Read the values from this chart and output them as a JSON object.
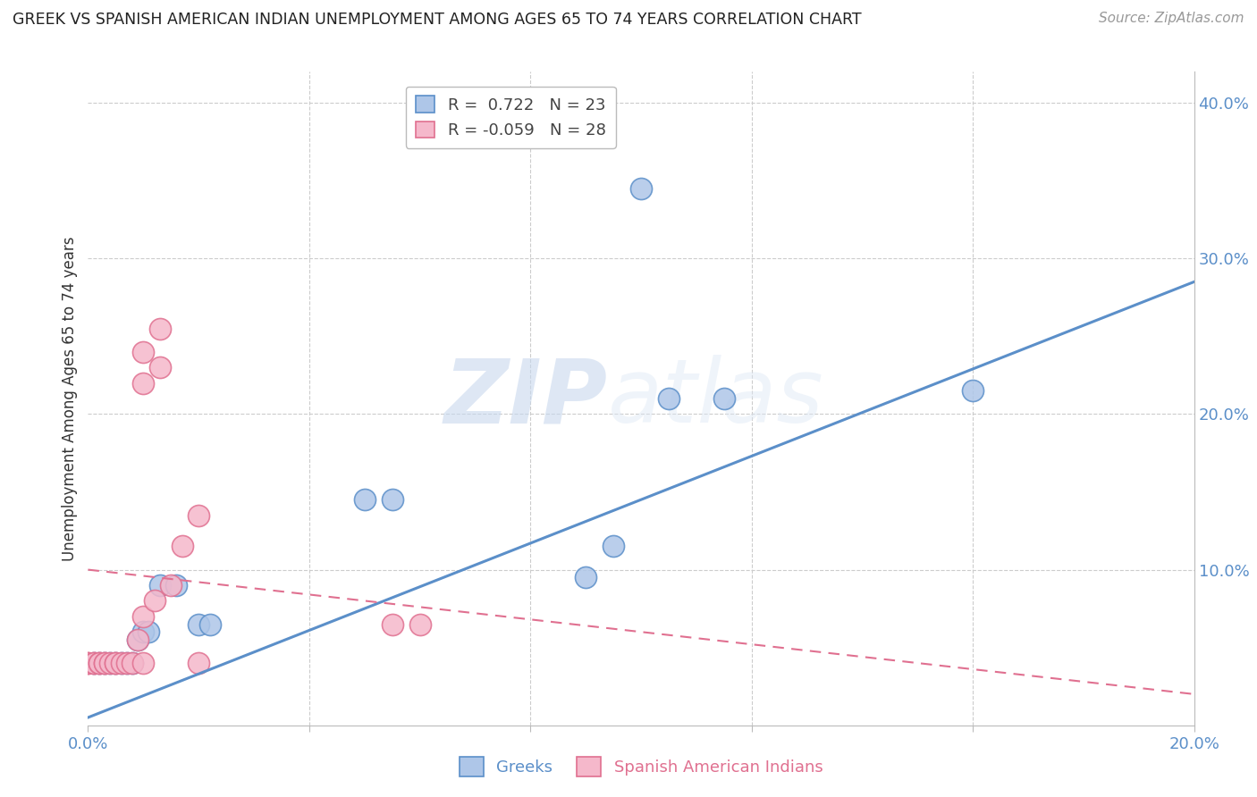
{
  "title": "GREEK VS SPANISH AMERICAN INDIAN UNEMPLOYMENT AMONG AGES 65 TO 74 YEARS CORRELATION CHART",
  "source": "Source: ZipAtlas.com",
  "ylabel": "Unemployment Among Ages 65 to 74 years",
  "xlim": [
    0.0,
    0.2
  ],
  "ylim": [
    0.0,
    0.42
  ],
  "xticks": [
    0.0,
    0.04,
    0.08,
    0.12,
    0.16,
    0.2
  ],
  "xticklabels": [
    "0.0%",
    "",
    "",
    "",
    "",
    "20.0%"
  ],
  "yticks_right": [
    0.1,
    0.2,
    0.3,
    0.4
  ],
  "yticklabels_right": [
    "10.0%",
    "20.0%",
    "30.0%",
    "40.0%"
  ],
  "greek_R": "0.722",
  "greek_N": "23",
  "spanish_R": "-0.059",
  "spanish_N": "28",
  "greek_color": "#5b8fc9",
  "greek_fill": "#aec6e8",
  "spanish_color": "#e07090",
  "spanish_fill": "#f5b8cb",
  "greek_points_x": [
    0.001,
    0.002,
    0.003,
    0.004,
    0.005,
    0.006,
    0.007,
    0.008,
    0.009,
    0.01,
    0.011,
    0.013,
    0.016,
    0.02,
    0.022,
    0.05,
    0.055,
    0.09,
    0.095,
    0.105,
    0.115,
    0.16,
    0.1
  ],
  "greek_points_y": [
    0.04,
    0.04,
    0.04,
    0.04,
    0.04,
    0.04,
    0.04,
    0.04,
    0.055,
    0.06,
    0.06,
    0.09,
    0.09,
    0.065,
    0.065,
    0.145,
    0.145,
    0.095,
    0.115,
    0.21,
    0.21,
    0.215,
    0.345
  ],
  "spanish_points_x": [
    0.0,
    0.0,
    0.001,
    0.001,
    0.002,
    0.002,
    0.003,
    0.003,
    0.004,
    0.005,
    0.005,
    0.006,
    0.007,
    0.008,
    0.009,
    0.01,
    0.012,
    0.015,
    0.017,
    0.02,
    0.055,
    0.06,
    0.02,
    0.01,
    0.013,
    0.013,
    0.01,
    0.01
  ],
  "spanish_points_y": [
    0.04,
    0.04,
    0.04,
    0.04,
    0.04,
    0.04,
    0.04,
    0.04,
    0.04,
    0.04,
    0.04,
    0.04,
    0.04,
    0.04,
    0.055,
    0.07,
    0.08,
    0.09,
    0.115,
    0.04,
    0.065,
    0.065,
    0.135,
    0.24,
    0.255,
    0.23,
    0.22,
    0.04
  ],
  "greek_line_x": [
    0.0,
    0.2
  ],
  "greek_line_y": [
    0.005,
    0.285
  ],
  "spanish_line_x": [
    0.0,
    0.2
  ],
  "spanish_line_y": [
    0.1,
    0.02
  ],
  "watermark_zip": "ZIP",
  "watermark_atlas": "atlas",
  "background_color": "#ffffff",
  "grid_color": "#cccccc"
}
